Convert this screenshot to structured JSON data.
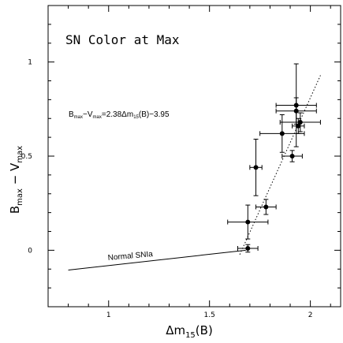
{
  "chart_data": {
    "type": "scatter",
    "title": "SN Color at Max",
    "xlabel": {
      "main": "Δm",
      "sub": "15",
      "tail": "(B)"
    },
    "ylabel": {
      "a": "B",
      "a_sub": "max",
      "op": " − ",
      "b": "V",
      "b_sub": "max"
    },
    "xlim": [
      0.7,
      2.15
    ],
    "ylim": [
      -0.3,
      1.3
    ],
    "xticks": [
      {
        "value": 1,
        "label": "1"
      },
      {
        "value": 1.5,
        "label": "1.5"
      },
      {
        "value": 2,
        "label": "2"
      }
    ],
    "yticks": [
      {
        "value": 0,
        "label": "0"
      },
      {
        "value": 0.5,
        "label": "0.5"
      },
      {
        "value": 1,
        "label": "1"
      }
    ],
    "grid": false,
    "points": [
      {
        "x": 1.69,
        "y": 0.01,
        "xerr": 0.05,
        "yerr": 0.02
      },
      {
        "x": 1.69,
        "y": 0.15,
        "xerr": 0.1,
        "yerr": 0.09
      },
      {
        "x": 1.73,
        "y": 0.44,
        "xerr": 0.03,
        "yerr": 0.15
      },
      {
        "x": 1.78,
        "y": 0.23,
        "xerr": 0.05,
        "yerr": 0.04
      },
      {
        "x": 1.86,
        "y": 0.62,
        "xerr": 0.11,
        "yerr": 0.1
      },
      {
        "x": 1.91,
        "y": 0.5,
        "xerr": 0.05,
        "yerr": 0.03
      },
      {
        "x": 1.93,
        "y": 0.77,
        "xerr": 0.1,
        "yerr": 0.22
      },
      {
        "x": 1.93,
        "y": 0.74,
        "xerr": 0.1,
        "yerr": 0.07
      },
      {
        "x": 1.95,
        "y": 0.68,
        "xerr": 0.1,
        "yerr": 0.05
      },
      {
        "x": 1.94,
        "y": 0.66,
        "xerr": 0.03,
        "yerr": 0.04
      }
    ],
    "fit_line": {
      "slope": 2.38,
      "intercept": -3.95,
      "x_range": [
        1.65,
        2.05
      ],
      "style": "dotted"
    },
    "normal_line": {
      "x": [
        0.8,
        1.68
      ],
      "y": [
        -0.105,
        0.0
      ]
    },
    "equation": {
      "a": "B",
      "a_sub": "max",
      "op": "−",
      "b": "V",
      "b_sub": "max",
      "mid": "=2.38Δm",
      "mid_sub": "15",
      "tail": "(B)−3.95"
    },
    "normal_label": "Normal SNIa"
  }
}
